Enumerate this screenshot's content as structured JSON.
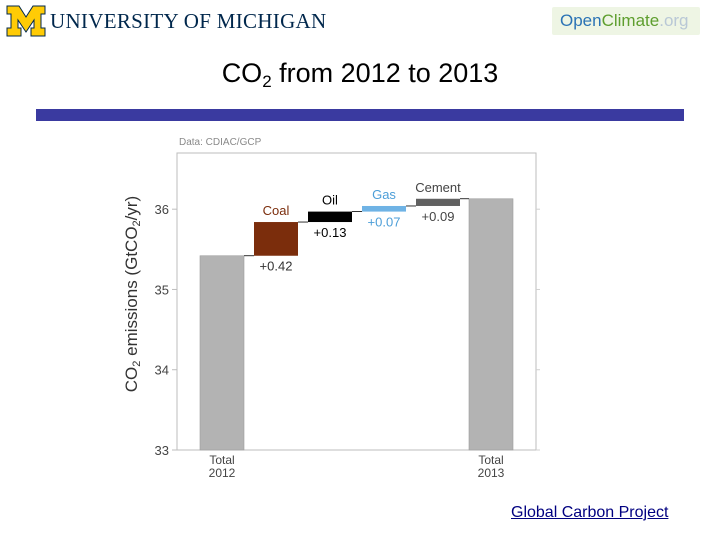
{
  "header": {
    "university": "UNIVERSITY OF MICHIGAN",
    "logo_letter": "M",
    "badge_open": "Open",
    "badge_climate": "Climate",
    "badge_org": ".org"
  },
  "slide": {
    "title_main": "CO",
    "title_sub": "2",
    "title_rest": " from 2012 to 2013"
  },
  "footer": {
    "link": "Global Carbon Project"
  },
  "colors": {
    "rule": "#3a3aa0",
    "total": "#b3b3b3",
    "coal": "#7b2d0c",
    "oil": "#000000",
    "gas": "#6fb3e5",
    "cement": "#616161",
    "accent_gas_text": "#4c9ed8"
  },
  "chart_data": {
    "type": "bar",
    "subtype": "waterfall",
    "data_source": "Data: CDIAC/GCP",
    "ylabel_parts": [
      "CO",
      "2",
      " emissions (GtCO",
      "2",
      "/yr)"
    ],
    "ylim": [
      33,
      36.7
    ],
    "yticks": [
      33,
      34,
      35,
      36
    ],
    "grid": false,
    "bars": [
      {
        "key": "total2012",
        "label_lines": [
          "Total",
          "2012"
        ],
        "start": 33,
        "end": 35.42,
        "color": "#b3b3b3"
      },
      {
        "key": "coal",
        "name": "Coal",
        "delta": "+0.42",
        "start": 35.42,
        "end": 35.84,
        "color": "#7b2d0c",
        "name_color": "#7b2d0c",
        "delta_color": "#333333"
      },
      {
        "key": "oil",
        "name": "Oil",
        "delta": "+0.13",
        "start": 35.84,
        "end": 35.97,
        "color": "#000000",
        "name_color": "#000000",
        "delta_color": "#000000"
      },
      {
        "key": "gas",
        "name": "Gas",
        "delta": "+0.07",
        "start": 35.97,
        "end": 36.04,
        "color": "#6fb3e5",
        "name_color": "#4c9ed8",
        "delta_color": "#4c9ed8"
      },
      {
        "key": "cement",
        "name": "Cement",
        "delta": "+0.09",
        "start": 36.04,
        "end": 36.13,
        "color": "#616161",
        "name_color": "#444444",
        "delta_color": "#444444"
      },
      {
        "key": "total2013",
        "label_lines": [
          "Total",
          "2013"
        ],
        "start": 33,
        "end": 36.13,
        "color": "#b3b3b3"
      }
    ]
  }
}
